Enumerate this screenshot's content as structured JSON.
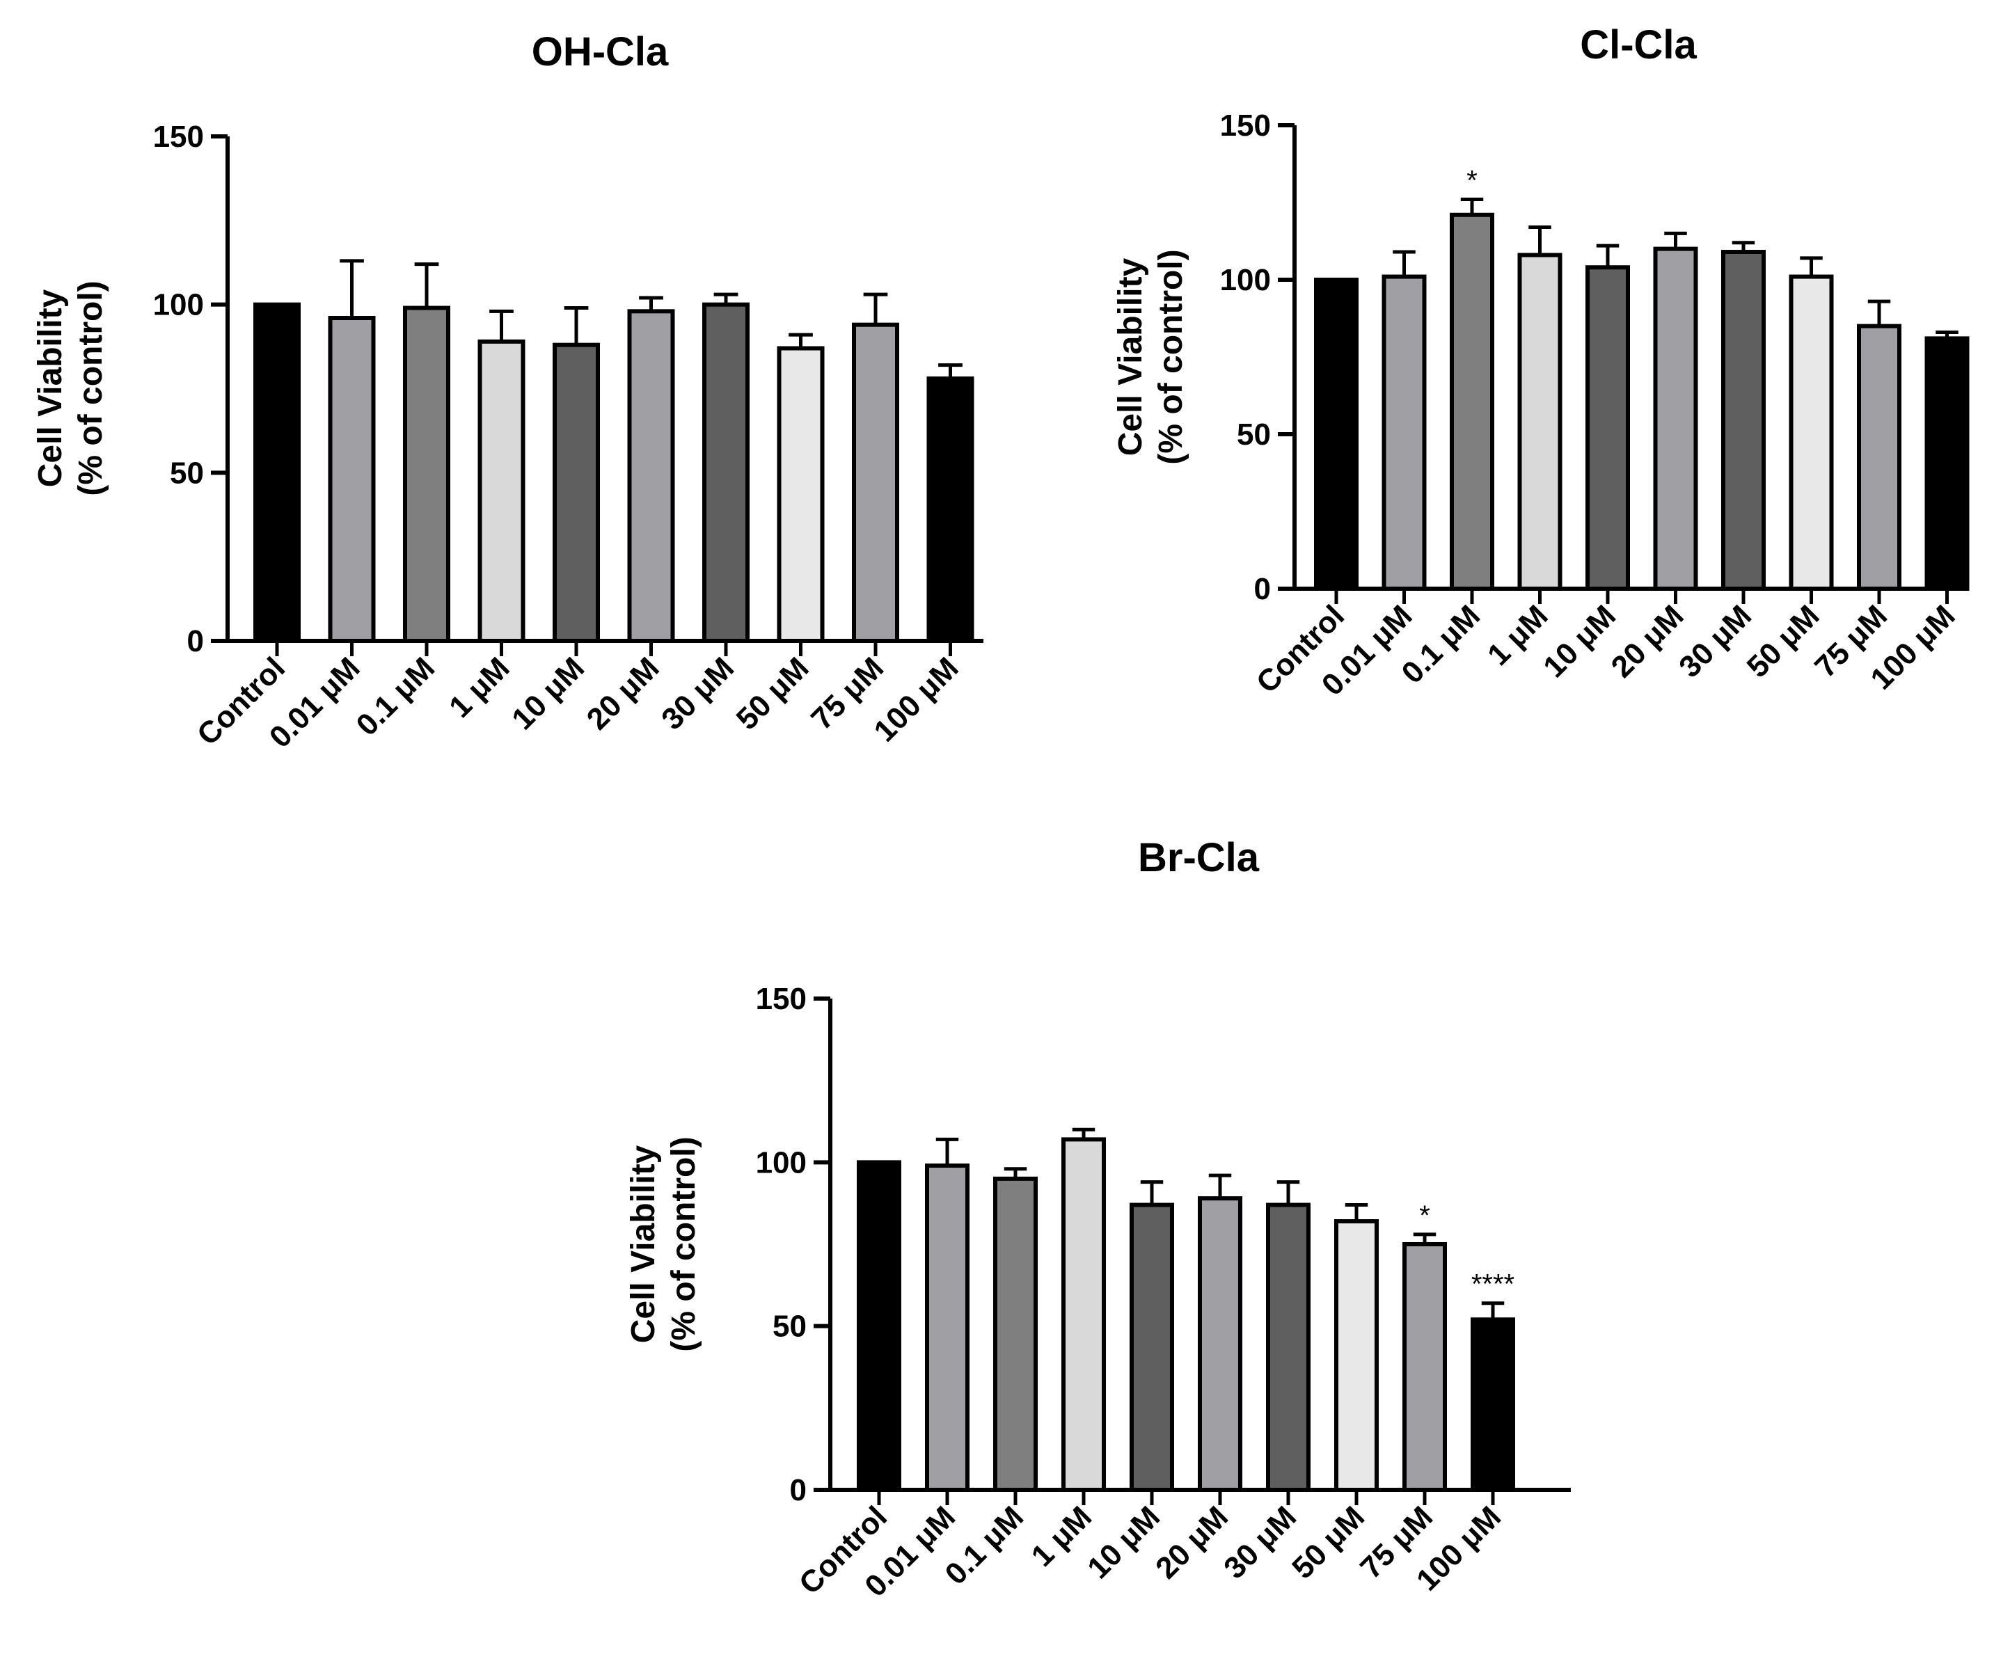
{
  "chart_data": [
    {
      "type": "bar",
      "title": "OH-Cla",
      "ylabel_line1": "Cell Viability",
      "ylabel_line2": "(%  of control)",
      "xlabel": "",
      "ylim": [
        0,
        150
      ],
      "yticks": [
        0,
        50,
        100,
        150
      ],
      "categories": [
        "Control",
        "0.01 μM",
        "0.1 μM",
        "1 μM",
        "10 μM",
        "20 μM",
        "30 μM",
        "50 μM",
        "75 μM",
        "100 μM"
      ],
      "values": [
        100,
        96,
        99,
        89,
        88,
        98,
        100,
        87,
        94,
        78
      ],
      "errors": [
        0,
        17,
        13,
        9,
        11,
        4,
        3,
        4,
        9,
        4
      ],
      "significance": [
        "",
        "",
        "",
        "",
        "",
        "",
        "",
        "",
        "",
        ""
      ],
      "colors": [
        "#000000",
        "#a0a0a4",
        "#7f7f7f",
        "#d9d9d9",
        "#5f5f5f",
        "#a0a0a4",
        "#5f5f5f",
        "#e8e8e8",
        "#a0a0a4",
        "#000000"
      ]
    },
    {
      "type": "bar",
      "title": "Cl-Cla",
      "ylabel_line1": "Cell Viability",
      "ylabel_line2": "(%  of control)",
      "xlabel": "",
      "ylim": [
        0,
        150
      ],
      "yticks": [
        0,
        50,
        100,
        150
      ],
      "categories": [
        "Control",
        "0.01 μM",
        "0.1 μM",
        "1 μM",
        "10 μM",
        "20 μM",
        "30 μM",
        "50 μM",
        "75 μM",
        "100 μM"
      ],
      "values": [
        100,
        101,
        121,
        108,
        104,
        110,
        109,
        101,
        85,
        81
      ],
      "errors": [
        0,
        8,
        5,
        9,
        7,
        5,
        3,
        6,
        8,
        2
      ],
      "significance": [
        "",
        "",
        "*",
        "",
        "",
        "",
        "",
        "",
        "",
        ""
      ],
      "colors": [
        "#000000",
        "#a0a0a4",
        "#7f7f7f",
        "#d9d9d9",
        "#5f5f5f",
        "#a0a0a4",
        "#5f5f5f",
        "#e8e8e8",
        "#a0a0a4",
        "#000000"
      ]
    },
    {
      "type": "bar",
      "title": "Br-Cla",
      "ylabel_line1": "Cell Viability",
      "ylabel_line2": "(%  of control)",
      "xlabel": "",
      "ylim": [
        0,
        150
      ],
      "yticks": [
        0,
        50,
        100,
        150
      ],
      "categories": [
        "Control",
        "0.01 μM",
        "0.1 μM",
        "1 μM",
        "10 μM",
        "20 μM",
        "30 μM",
        "50 μM",
        "75 μM",
        "100 μM"
      ],
      "values": [
        100,
        99,
        95,
        107,
        87,
        89,
        87,
        82,
        75,
        52
      ],
      "errors": [
        0,
        8,
        3,
        3,
        7,
        7,
        7,
        5,
        3,
        5
      ],
      "significance": [
        "",
        "",
        "",
        "",
        "",
        "",
        "",
        "",
        "*",
        "****"
      ],
      "colors": [
        "#000000",
        "#a0a0a4",
        "#7f7f7f",
        "#d9d9d9",
        "#5f5f5f",
        "#a0a0a4",
        "#5f5f5f",
        "#e8e8e8",
        "#a0a0a4",
        "#000000"
      ]
    }
  ]
}
